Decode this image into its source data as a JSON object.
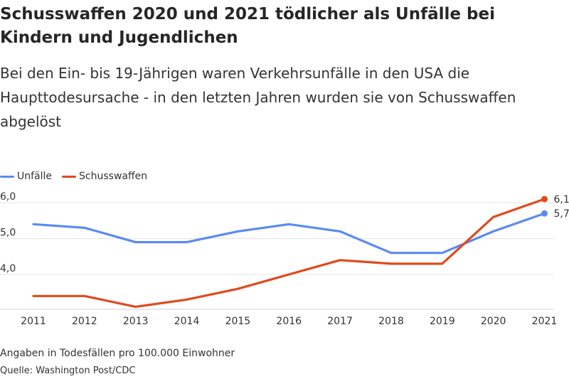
{
  "header": {
    "title": "Schusswaffen 2020 und 2021 tödlicher als Unfälle bei Kindern und Jugendlichen",
    "subtitle": "Bei den Ein- bis 19-Jährigen waren Verkehrsunfälle in den USA die Haupttodesursache - in den letzten Jahren wurden sie von Schusswaffen abgelöst"
  },
  "colors": {
    "unfaelle": "#5b8af5",
    "schusswaffen": "#e04a1c",
    "grid": "#e6e6e6",
    "axis": "#cccccc"
  },
  "chart_data": {
    "type": "line",
    "categories": [
      "2011",
      "2012",
      "2013",
      "2014",
      "2015",
      "2016",
      "2017",
      "2018",
      "2019",
      "2020",
      "2021"
    ],
    "series": [
      {
        "name": "Unfälle",
        "values": [
          5.4,
          5.3,
          4.9,
          4.9,
          5.2,
          5.4,
          5.2,
          4.6,
          4.6,
          5.2,
          5.7
        ]
      },
      {
        "name": "Schusswaffen",
        "values": [
          3.4,
          3.4,
          3.1,
          3.3,
          3.6,
          4.0,
          4.4,
          4.3,
          4.3,
          5.6,
          6.1
        ]
      }
    ],
    "yticks": [
      "4,0",
      "5,0",
      "6,0"
    ],
    "ytick_values": [
      4,
      5,
      6
    ],
    "end_labels": [
      "5,7",
      "6,1"
    ],
    "ylim": [
      3.0,
      6.5
    ],
    "grid": true,
    "legend_position": "top-left"
  },
  "footer": {
    "note": "Angaben in Todesfällen pro 100.000 Einwohner",
    "source": "Quelle: Washington Post/CDC"
  }
}
